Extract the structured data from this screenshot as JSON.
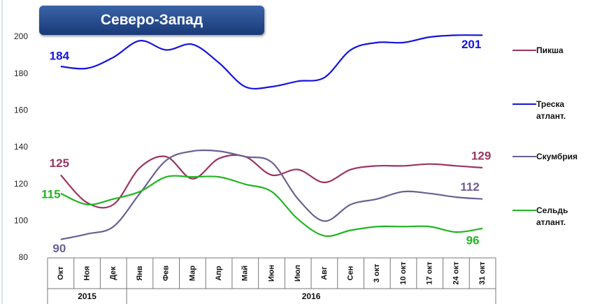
{
  "chart_data": {
    "type": "line",
    "title": "Северо-Запад",
    "categories": [
      "Окт",
      "Ноя",
      "Дек",
      "Янв",
      "Фев",
      "Мар",
      "Апр",
      "Май",
      "Июн",
      "Июл",
      "Авг",
      "Сен",
      "3 окт",
      "10 окт",
      "17 окт",
      "24 окт",
      "31 окт"
    ],
    "groups": [
      {
        "label": "2015",
        "count": 3
      },
      {
        "label": "2016",
        "count": 14
      }
    ],
    "series": [
      {
        "name": "Пикша",
        "color": "#9b3462",
        "values": [
          125,
          110,
          109,
          129,
          135,
          123,
          134,
          135,
          125,
          128,
          121,
          128,
          130,
          130,
          131,
          130,
          129
        ]
      },
      {
        "name": "Треска атлант.",
        "color": "#1414e0",
        "values": [
          184,
          183,
          189,
          198,
          193,
          196,
          186,
          173,
          173,
          176,
          178,
          193,
          197,
          197,
          200,
          201,
          201
        ]
      },
      {
        "name": "Скумбрия",
        "color": "#6b5f92",
        "values": [
          90,
          93,
          97,
          115,
          133,
          138,
          138,
          135,
          132,
          112,
          100,
          109,
          112,
          116,
          115,
          113,
          112
        ]
      },
      {
        "name": "Сельдь атлант.",
        "color": "#22b522",
        "values": [
          115,
          109,
          112,
          116,
          124,
          124,
          124,
          120,
          116,
          101,
          92,
          95,
          97,
          97,
          97,
          94,
          96
        ]
      }
    ],
    "ylim": [
      80,
      200
    ],
    "yticks": [
      80,
      100,
      120,
      140,
      160,
      180,
      200
    ],
    "grid": false
  }
}
